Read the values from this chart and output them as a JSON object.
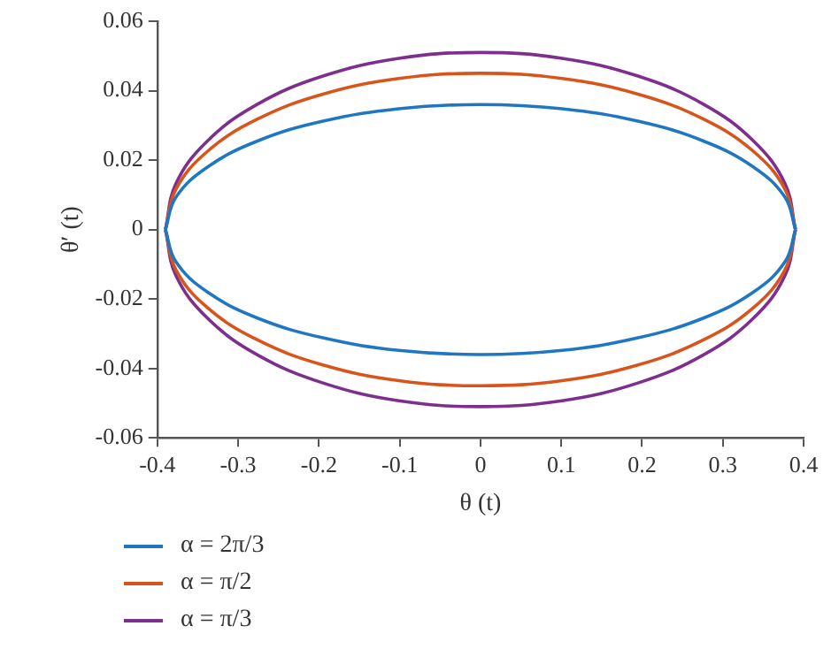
{
  "chart_data": {
    "type": "line",
    "xlabel": "θ (t)",
    "ylabel": "θ′ (t)",
    "xlim": [
      -0.4,
      0.4
    ],
    "xticks": [
      -0.4,
      -0.3,
      -0.2,
      -0.1,
      0,
      0.1,
      0.2,
      0.3,
      0.4
    ],
    "ylim": [
      -0.06,
      0.06
    ],
    "yticks": [
      -0.06,
      -0.04,
      -0.02,
      0,
      0.02,
      0.04,
      0.06
    ],
    "grid": false,
    "legend": "bottom left",
    "marker": "none",
    "line_style": "solid",
    "x": [
      -0.39,
      -0.377,
      -0.338,
      -0.276,
      -0.195,
      -0.101,
      0,
      0.101,
      0.195,
      0.276,
      0.338,
      0.377,
      0.39,
      null,
      -0.39,
      -0.377,
      -0.338,
      -0.276,
      -0.195,
      -0.101,
      0,
      0.101,
      0.195,
      0.276,
      0.338,
      0.377,
      0.39
    ],
    "series": [
      {
        "name": "α = 2π/3",
        "color": "#1f77c4",
        "values": [
          0,
          0.0093,
          0.018,
          0.0255,
          0.0312,
          0.0348,
          0.036,
          0.0348,
          0.0312,
          0.0255,
          0.018,
          0.0093,
          0,
          null,
          0,
          -0.0093,
          -0.018,
          -0.0255,
          -0.0312,
          -0.0348,
          -0.036,
          -0.0348,
          -0.0312,
          -0.0255,
          -0.018,
          -0.0093,
          0
        ]
      },
      {
        "name": "α = π/2",
        "color": "#d9541a",
        "values": [
          0,
          0.0116,
          0.0225,
          0.0318,
          0.039,
          0.0435,
          0.045,
          0.0435,
          0.039,
          0.0318,
          0.0225,
          0.0116,
          0,
          null,
          0,
          -0.0116,
          -0.0225,
          -0.0318,
          -0.039,
          -0.0435,
          -0.045,
          -0.0435,
          -0.039,
          -0.0318,
          -0.0225,
          -0.0116,
          0
        ]
      },
      {
        "name": "α = π/3",
        "color": "#7e2f8e",
        "values": [
          0,
          0.0132,
          0.0255,
          0.0361,
          0.0442,
          0.0493,
          0.051,
          0.0493,
          0.0442,
          0.0361,
          0.0255,
          0.0132,
          0,
          null,
          0,
          -0.0132,
          -0.0255,
          -0.0361,
          -0.0442,
          -0.0493,
          -0.051,
          -0.0493,
          -0.0442,
          -0.0361,
          -0.0255,
          -0.0132,
          0
        ]
      }
    ]
  }
}
